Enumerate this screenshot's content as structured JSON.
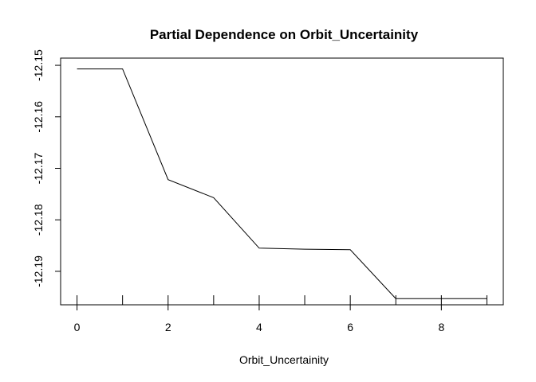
{
  "chart_data": {
    "type": "line",
    "title": "Partial Dependence on  Orbit_Uncertainity",
    "xlabel": "Orbit_Uncertainity",
    "ylabel": "",
    "xlim": [
      -0.36,
      9.36
    ],
    "ylim": [
      -12.1965,
      -12.1486
    ],
    "x_ticks": [
      0,
      2,
      4,
      6,
      8
    ],
    "x_tick_labels": [
      "0",
      "2",
      "4",
      "6",
      "8"
    ],
    "y_ticks": [
      -12.15,
      -12.16,
      -12.17,
      -12.18,
      -12.19
    ],
    "y_tick_labels": [
      "-12.15",
      "-12.16",
      "-12.17",
      "-12.18",
      "-12.19"
    ],
    "rug": [
      0,
      1,
      2,
      3,
      4,
      5,
      6,
      7,
      8,
      9
    ],
    "grid": false,
    "series": [
      {
        "x": [
          0,
          1,
          2,
          3,
          4,
          5,
          6,
          7,
          8,
          9
        ],
        "values": [
          -12.1507,
          -12.1507,
          -12.1722,
          -12.1757,
          -12.1855,
          -12.1857,
          -12.1858,
          -12.1953,
          -12.1953,
          -12.1953
        ]
      }
    ]
  }
}
